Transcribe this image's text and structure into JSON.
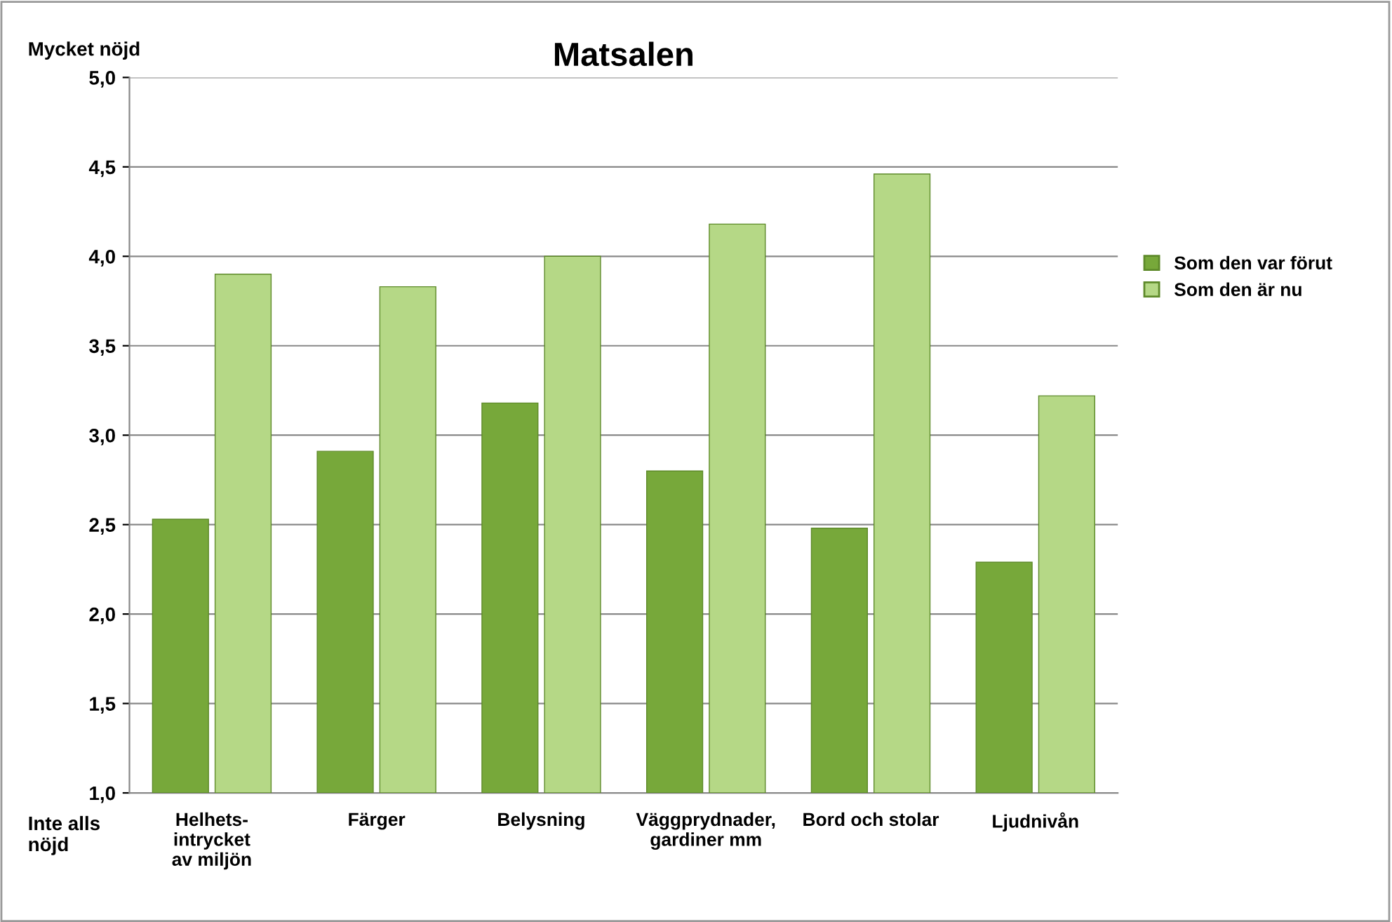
{
  "chart_data": {
    "type": "bar",
    "title": "Matsalen",
    "categories": [
      "Helhets-\nintrycket\nav miljön",
      "Färger",
      "Belysning",
      "Väggprydnader,\ngardiner mm",
      "Bord och stolar",
      "Ljudnivån"
    ],
    "series": [
      {
        "name": "Som den var förut",
        "color": "#77a83a",
        "values": [
          2.53,
          2.91,
          3.18,
          2.8,
          2.48,
          2.29
        ]
      },
      {
        "name": "Som den är nu",
        "color": "#b5d886",
        "values": [
          3.9,
          3.83,
          4.0,
          4.18,
          4.46,
          3.22
        ]
      }
    ],
    "ylim": [
      1.0,
      5.0
    ],
    "yticks": [
      {
        "value": 1.0,
        "label": "1,0"
      },
      {
        "value": 1.5,
        "label": "1,5"
      },
      {
        "value": 2.0,
        "label": "2,0"
      },
      {
        "value": 2.5,
        "label": "2,5"
      },
      {
        "value": 3.0,
        "label": "3,0"
      },
      {
        "value": 3.5,
        "label": "3,5"
      },
      {
        "value": 4.0,
        "label": "4,0"
      },
      {
        "value": 4.5,
        "label": "4,5"
      },
      {
        "value": 5.0,
        "label": "5,0"
      }
    ],
    "grid": "y",
    "legend": "right",
    "annotations": [
      "Mycket nöjd",
      "Inte alls\nnöjd"
    ]
  }
}
